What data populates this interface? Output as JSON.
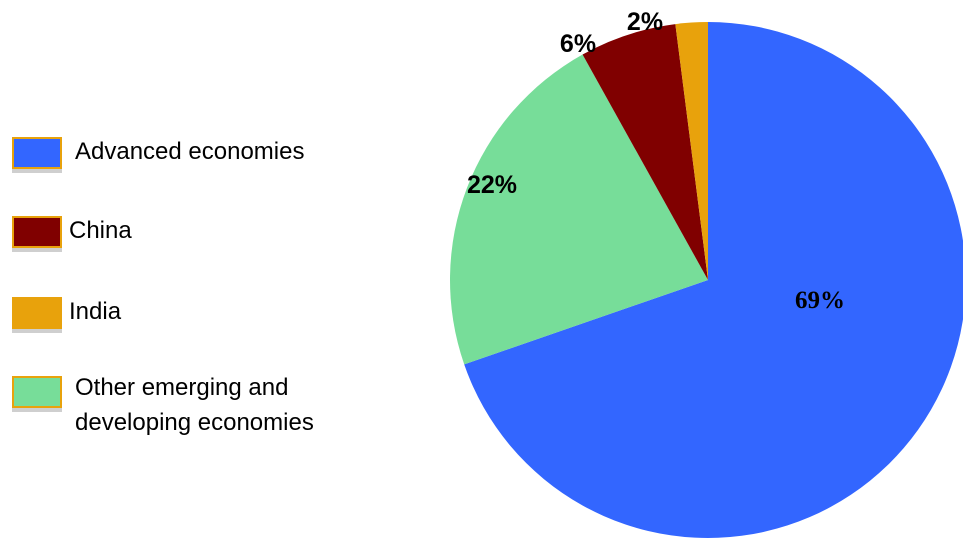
{
  "chart_data": {
    "type": "pie",
    "slices": [
      {
        "label": "Advanced economies",
        "value": 69,
        "display": "69%",
        "color": "#3366ff"
      },
      {
        "label": "Other emerging and developing economies",
        "value": 22,
        "display": "22%",
        "color": "#77dd99"
      },
      {
        "label": "China",
        "value": 6,
        "display": "6%",
        "color": "#800000"
      },
      {
        "label": "India",
        "value": 2,
        "display": "2%",
        "color": "#e8a20c"
      }
    ],
    "legend_placement": "left"
  },
  "legend": {
    "items": [
      {
        "lines": [
          "Advanced economies"
        ],
        "color": "#3366ff"
      },
      {
        "lines": [
          "China"
        ],
        "color": "#800000"
      },
      {
        "lines": [
          "India"
        ],
        "color": "#e8a20c"
      },
      {
        "lines": [
          "Other emerging and",
          "developing economies"
        ],
        "color": "#77dd99"
      }
    ]
  }
}
